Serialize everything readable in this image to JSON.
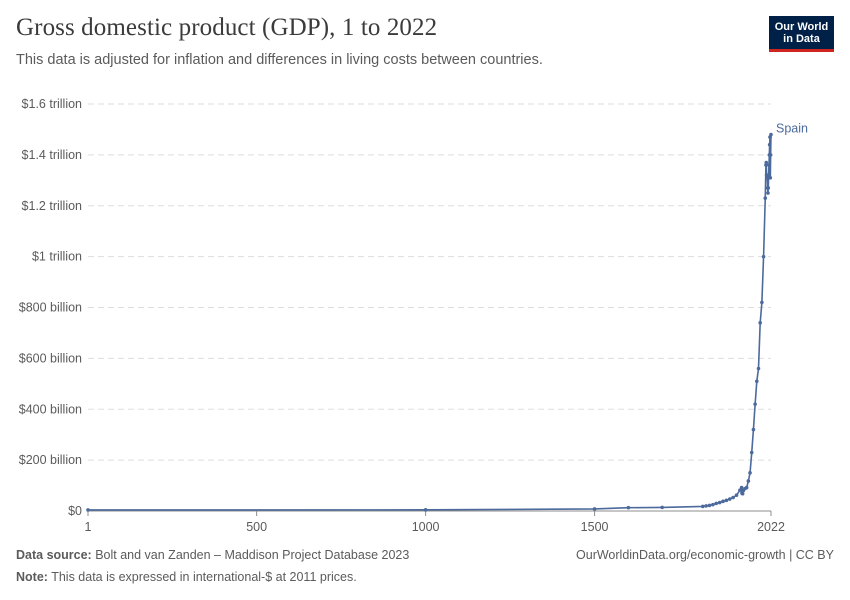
{
  "header": {
    "title": "Gross domestic product (GDP), 1 to 2022",
    "subtitle": "This data is adjusted for inflation and differences in living costs between countries."
  },
  "logo": {
    "line1": "Our World",
    "line2": "in Data"
  },
  "footer": {
    "source_label": "Data source:",
    "source_text": "Bolt and van Zanden – Maddison Project Database 2023",
    "note_label": "Note:",
    "note_text": "This data is expressed in international-$ at 2011 prices.",
    "right_text": "OurWorldinData.org/economic-growth | CC BY"
  },
  "colors": {
    "series": "#4c6a9c",
    "grid": "#dddddd",
    "axis_text": "#5b5b5b"
  },
  "chart_data": {
    "type": "line",
    "title": "Gross domestic product (GDP), 1 to 2022",
    "xlabel": "",
    "ylabel": "",
    "xlim": [
      1,
      2022
    ],
    "ylim": [
      0,
      1600000000000
    ],
    "x_ticks": [
      1,
      500,
      1000,
      1500,
      2022
    ],
    "x_tick_labels": [
      "1",
      "500",
      "1000",
      "1500",
      "2022"
    ],
    "y_ticks": [
      0,
      200000000000,
      400000000000,
      600000000000,
      800000000000,
      1000000000000,
      1200000000000,
      1400000000000,
      1600000000000
    ],
    "y_tick_labels": [
      "$0",
      "$200 billion",
      "$400 billion",
      "$600 billion",
      "$800 billion",
      "$1 trillion",
      "$1.2 trillion",
      "$1.4 trillion",
      "$1.6 trillion"
    ],
    "grid": true,
    "series": [
      {
        "name": "Spain",
        "x": [
          1,
          1000,
          1500,
          1600,
          1700,
          1820,
          1830,
          1840,
          1850,
          1860,
          1870,
          1880,
          1890,
          1900,
          1910,
          1920,
          1930,
          1935,
          1936,
          1938,
          1940,
          1945,
          1950,
          1955,
          1960,
          1965,
          1970,
          1975,
          1980,
          1985,
          1990,
          1995,
          2000,
          2005,
          2007,
          2008,
          2009,
          2010,
          2011,
          2012,
          2013,
          2014,
          2015,
          2016,
          2017,
          2018,
          2019,
          2020,
          2021,
          2022
        ],
        "values": [
          4000000000,
          4500000000,
          8000000000,
          13000000000,
          14000000000,
          18000000000,
          20000000000,
          22000000000,
          25000000000,
          30000000000,
          33000000000,
          38000000000,
          42000000000,
          47000000000,
          53000000000,
          62000000000,
          82000000000,
          92000000000,
          70000000000,
          68000000000,
          80000000000,
          88000000000,
          92000000000,
          118000000000,
          150000000000,
          230000000000,
          320000000000,
          420000000000,
          510000000000,
          560000000000,
          740000000000,
          820000000000,
          1000000000000,
          1230000000000,
          1360000000000,
          1370000000000,
          1320000000000,
          1320000000000,
          1310000000000,
          1270000000000,
          1250000000000,
          1270000000000,
          1320000000000,
          1360000000000,
          1400000000000,
          1440000000000,
          1470000000000,
          1310000000000,
          1400000000000,
          1480000000000
        ]
      }
    ]
  }
}
